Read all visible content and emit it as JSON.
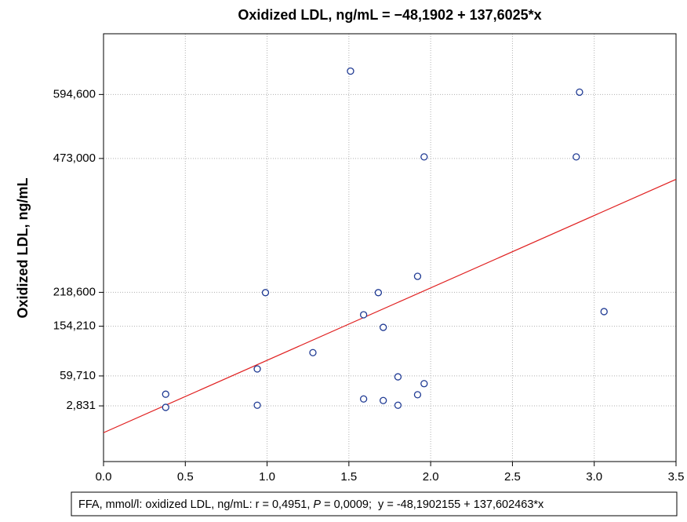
{
  "chart_data": {
    "type": "scatter",
    "title": "Oxidized LDL, ng/mL = −48,1902 + 137,6025*x",
    "y_label": "Oxidized LDL, ng/mL",
    "footnote": {
      "before": "FFA, mmol/l: oxidized LDL, ng/mL: r = 0,4951, ",
      "italic": "P",
      "after": " = 0,0009;  y = -48,1902155 + 137,602463*x"
    },
    "regression": {
      "intercept": -48.1902,
      "slope": 137.6025,
      "color": "#e02020"
    },
    "color": "#1f3a93",
    "grid": true,
    "xlim": [
      0,
      3.5
    ],
    "ylim": [
      -103,
      710
    ],
    "xticks": [
      {
        "value": 0,
        "label": "0.0"
      },
      0.5,
      {
        "value": 1,
        "label": "1.0"
      },
      1.5,
      {
        "value": 2,
        "label": "2.0"
      },
      2.5,
      {
        "value": 3,
        "label": "3.0"
      },
      3.5
    ],
    "yticks": [
      {
        "value": 2.831,
        "label": "2,831"
      },
      {
        "value": 59.71,
        "label": "59,710"
      },
      {
        "value": 154.21,
        "label": "154,210"
      },
      {
        "value": 218.6,
        "label": "218,600"
      },
      {
        "value": 473,
        "label": "473,000"
      },
      {
        "value": 594.6,
        "label": "594,600"
      }
    ],
    "x": [
      0.38,
      0.38,
      0.94,
      0.94,
      0.99,
      1.28,
      1.51,
      1.59,
      1.59,
      1.68,
      1.71,
      1.71,
      1.8,
      1.8,
      1.92,
      1.92,
      1.96,
      1.96,
      2.89,
      2.91,
      3.06
    ],
    "values": [
      25,
      0,
      73,
      4,
      218,
      104,
      639,
      176,
      16,
      218,
      152,
      13,
      58,
      4,
      249,
      24,
      45,
      476,
      476,
      599,
      182
    ]
  }
}
